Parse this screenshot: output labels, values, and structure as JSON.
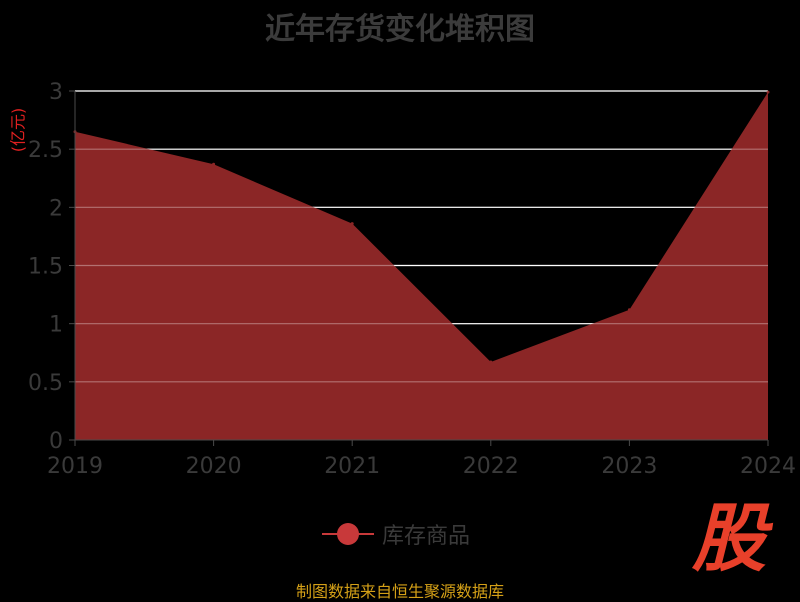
{
  "chart_data": {
    "type": "area",
    "title": "近年存货变化堆积图",
    "unit_label": "(亿元)",
    "categories": [
      "2019",
      "2020",
      "2021",
      "2022",
      "2023",
      "2024"
    ],
    "series": [
      {
        "name": "库存商品",
        "values": [
          2.65,
          2.37,
          1.86,
          0.67,
          1.12,
          2.99
        ]
      }
    ],
    "ylim": [
      0,
      3
    ],
    "yticks": [
      0,
      0.5,
      1,
      1.5,
      2,
      2.5,
      3
    ],
    "ytick_labels": [
      "0",
      "0.5",
      "1",
      "1.5",
      "2",
      "2.5",
      "3"
    ],
    "grid": true,
    "legend_position": "bottom-center"
  },
  "colors": {
    "area_fill": "#8b2626",
    "legend_marker": "#c8393a",
    "unit_text": "#e02020",
    "source_text": "#d4a017",
    "logo": "#e8402a",
    "grid": "#ffffff"
  },
  "footer": {
    "source": "制图数据来自恒生聚源数据库"
  },
  "logo": {
    "text": "股"
  }
}
